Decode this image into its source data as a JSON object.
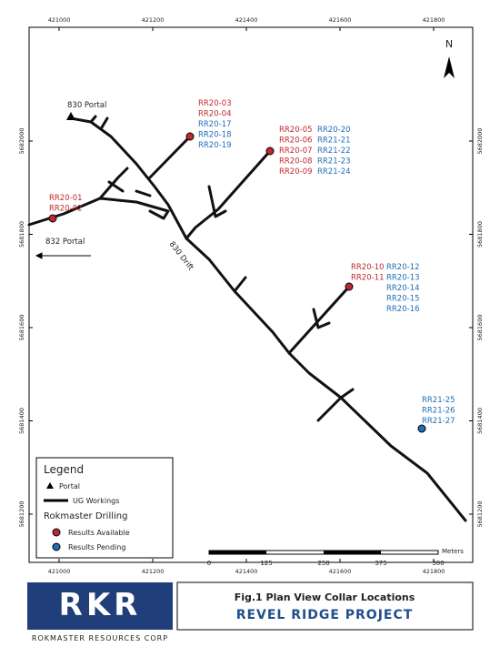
{
  "map": {
    "x_coords": [
      421000,
      421200,
      421400,
      421600,
      421800
    ],
    "y_coords": [
      5682000,
      5681800,
      5681600,
      5681400,
      5681200
    ],
    "north": "N",
    "portal_830": "830 Portal",
    "portal_832": "832 Portal",
    "drift": "830 Drift",
    "drill_labels": [
      {
        "color": "#c0282d",
        "items": [
          "RR20-01",
          "RR20-02"
        ]
      },
      {
        "color": "#c0282d",
        "items": [
          "RR20-03",
          "RR20-04"
        ]
      },
      {
        "color": "#1f6db5",
        "items": [
          "RR20-17",
          "RR20-18",
          "RR20-19"
        ]
      },
      {
        "color": "#c0282d",
        "items": [
          "RR20-05",
          "RR20-06",
          "RR20-07",
          "RR20-08",
          "RR20-09"
        ]
      },
      {
        "color": "#1f6db5",
        "items": [
          "RR20-20",
          "RR21-21",
          "RR21-22",
          "RR21-23",
          "RR21-24"
        ]
      },
      {
        "color": "#c0282d",
        "items": [
          "RR20-10",
          "RR20-11"
        ]
      },
      {
        "color": "#1f6db5",
        "items": [
          "RR20-12",
          "RR20-13",
          "RR20-14",
          "RR20-15",
          "RR20-16"
        ]
      },
      {
        "color": "#1f6db5",
        "items": [
          "RR21-25",
          "RR21-26",
          "RR21-27"
        ]
      }
    ],
    "scale": {
      "unit": "Meters",
      "ticks": [
        0,
        125,
        250,
        375,
        500
      ]
    }
  },
  "legend": {
    "title": "Legend",
    "portal": "Portal",
    "workings": "UG Workings",
    "drilling": "Rokmaster Drilling",
    "available": "Results Available",
    "pending": "Results Pending"
  },
  "footer": {
    "company": "ROKMASTER RESOURCES CORP",
    "figure": "Fig.1 Plan View Collar Locations",
    "project": "REVEL RIDGE PROJECT"
  }
}
